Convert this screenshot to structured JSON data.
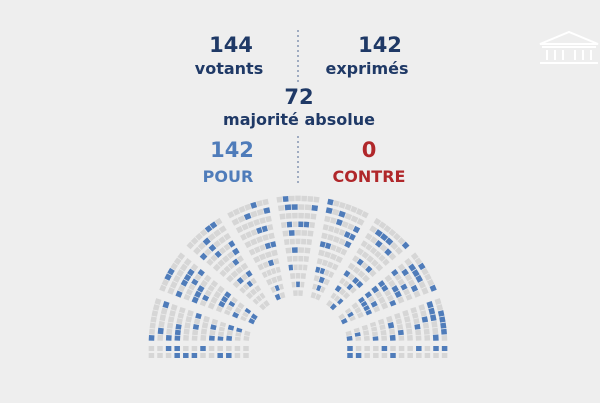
{
  "header": {
    "votants": {
      "number": "144",
      "label": "votants"
    },
    "exprimes": {
      "number": "142",
      "label": "exprimés"
    }
  },
  "majorite": {
    "number": "72",
    "label": "majorité absolue"
  },
  "result": {
    "pour": {
      "number": "142",
      "label": "POUR"
    },
    "contre": {
      "number": "0",
      "label": "CONTRE"
    }
  }
}
